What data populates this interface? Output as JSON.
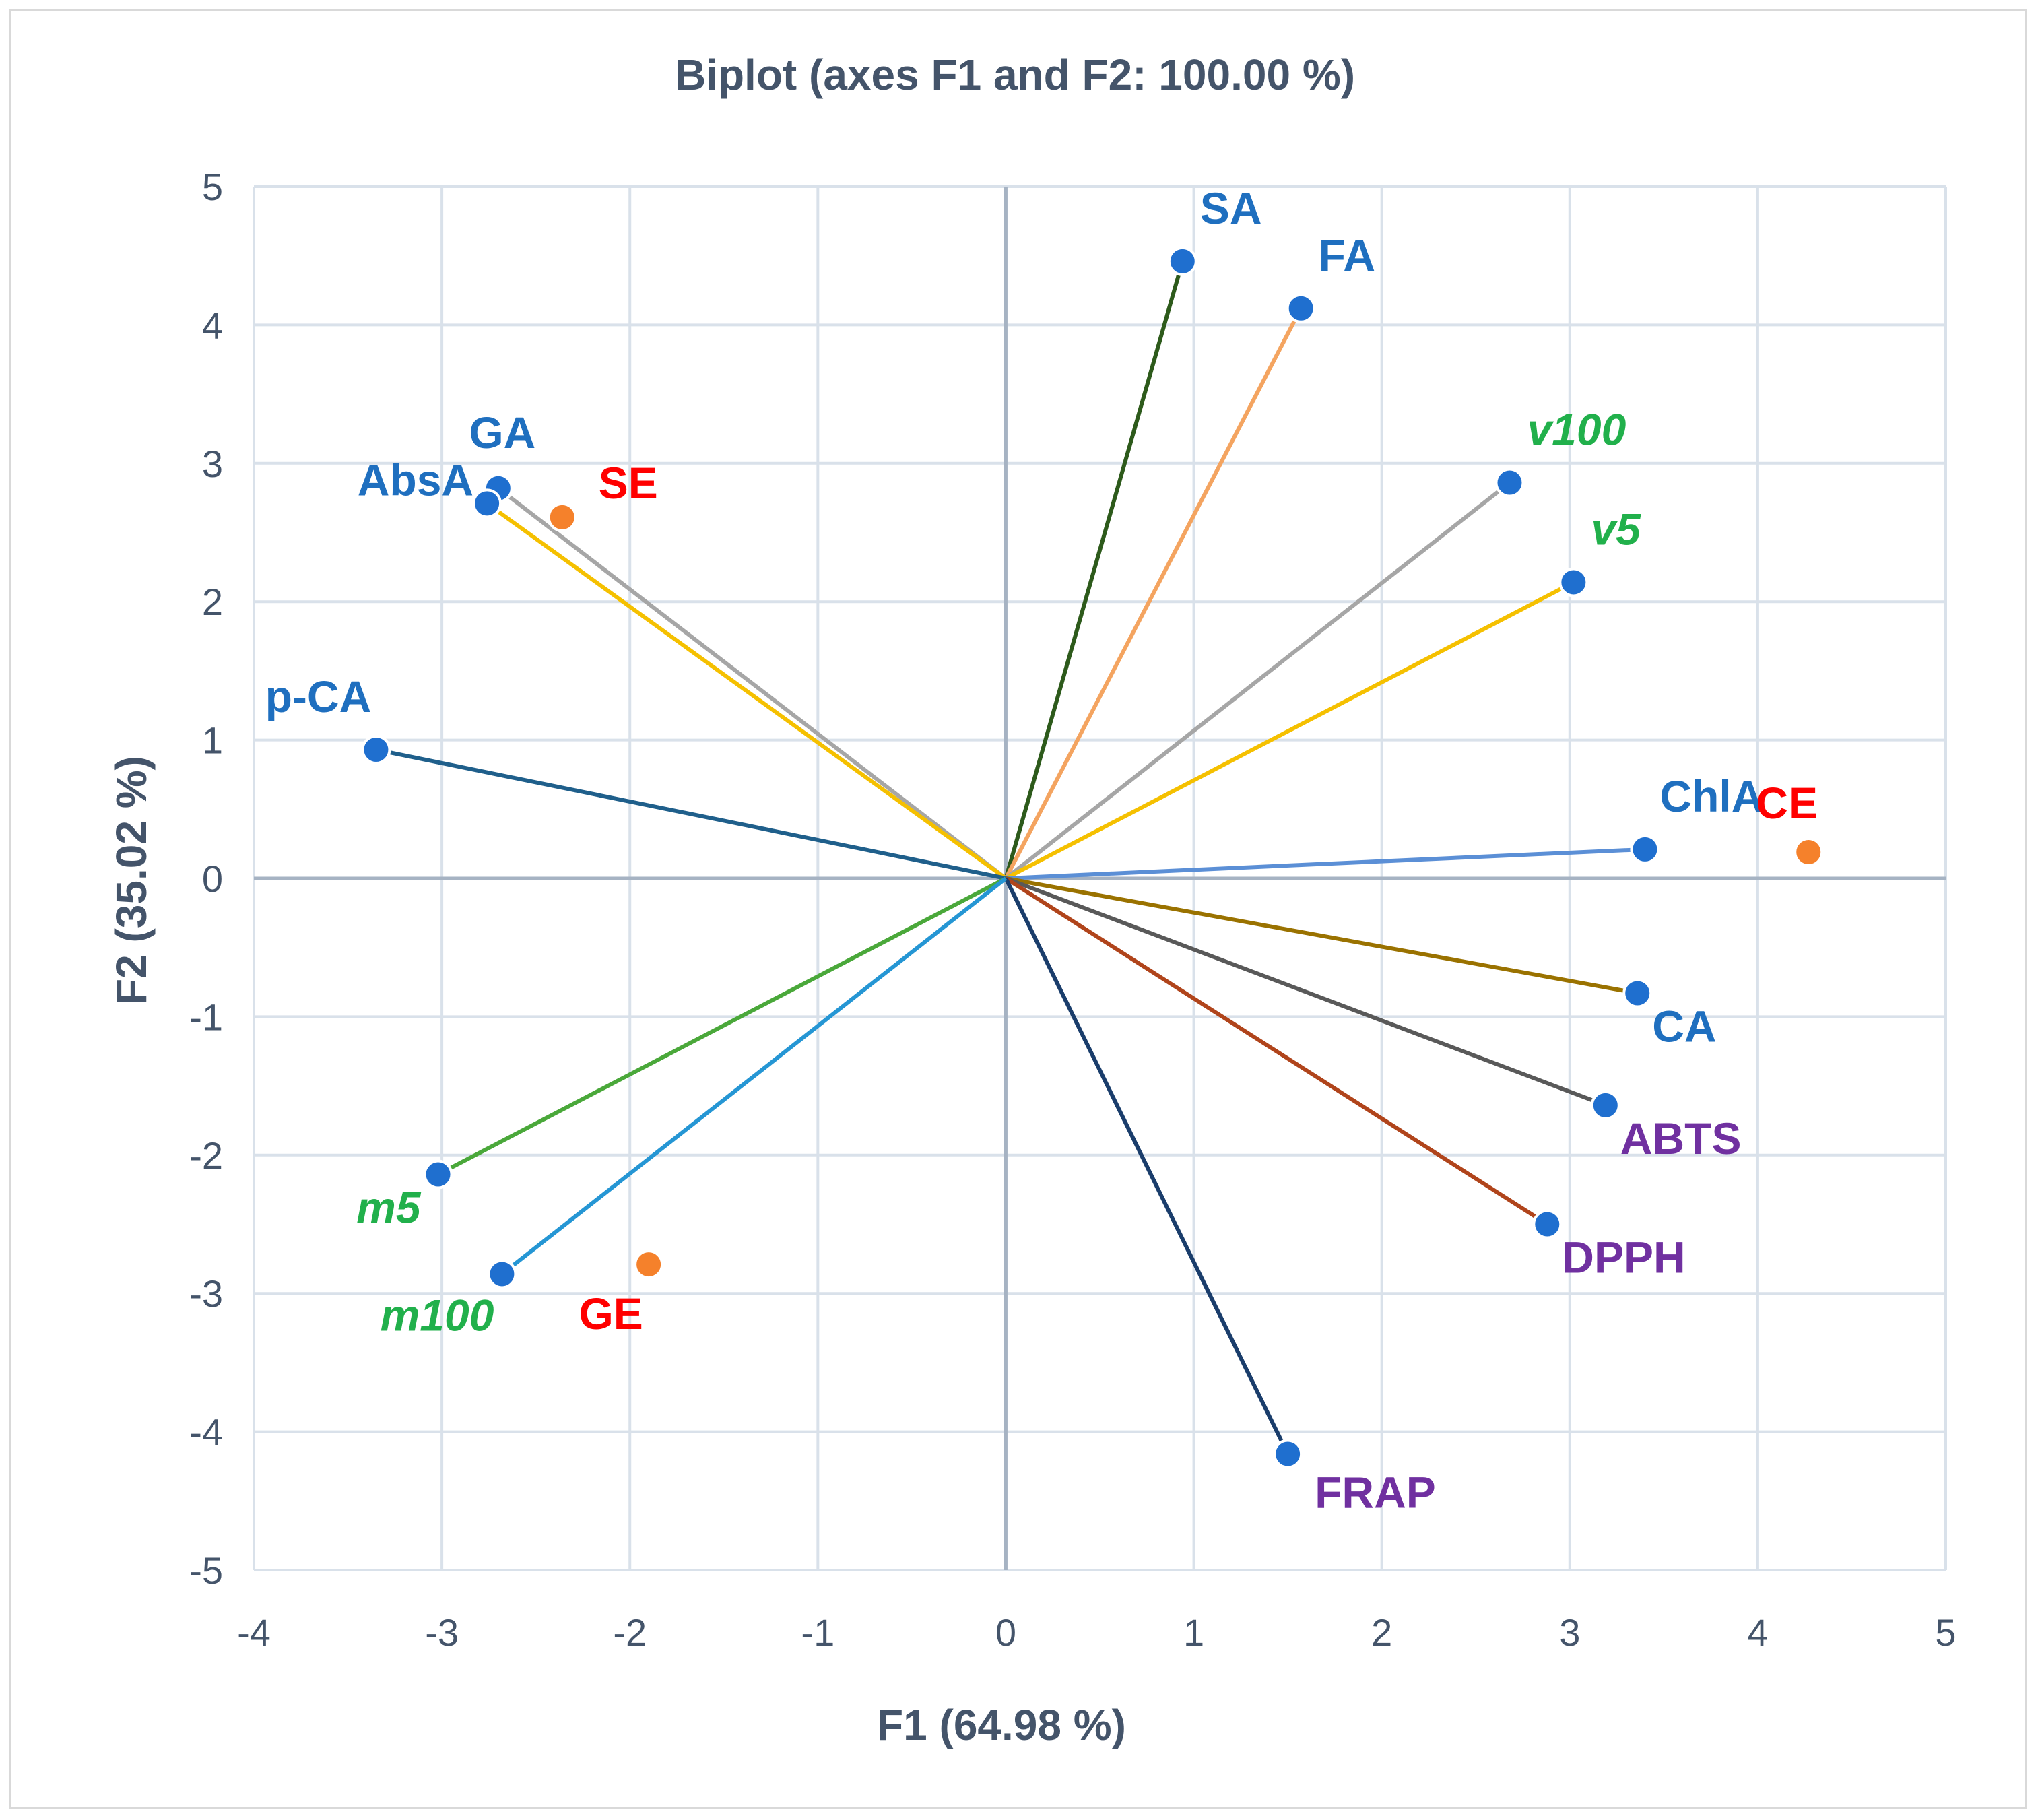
{
  "chart_data": {
    "type": "scatter",
    "subtype": "pca-biplot",
    "title": "Biplot (axes F1 and F2: 100.00 %)",
    "xlabel": "F1 (64.98 %)",
    "ylabel": "F2 (35.02 %)",
    "xlim": [
      -4,
      5
    ],
    "ylim": [
      -5,
      5
    ],
    "xticks": [
      -4,
      -3,
      -2,
      -1,
      0,
      1,
      2,
      3,
      4,
      5
    ],
    "yticks": [
      -5,
      -4,
      -3,
      -2,
      -1,
      0,
      1,
      2,
      3,
      4,
      5
    ],
    "grid": true,
    "colors": {
      "variable_point": "#1f6fcf",
      "observation_point": "#f5812b",
      "blue_label": "#1f6fbf",
      "red_label": "#ff0000",
      "green_label": "#21b04b",
      "purple_label": "#7030a0",
      "grid": "#d9e1ea",
      "zero_axis": "#a6b3c3"
    },
    "variables": [
      {
        "label": "SA",
        "x": 0.94,
        "y": 4.46,
        "line_color": "#2d5a1b",
        "label_color": "#1f6fbf",
        "italic": false
      },
      {
        "label": "FA",
        "x": 1.57,
        "y": 4.12,
        "line_color": "#f4a460",
        "label_color": "#1f6fbf",
        "italic": false
      },
      {
        "label": "v100",
        "x": 2.68,
        "y": 2.86,
        "line_color": "#a6a6a6",
        "label_color": "#21b04b",
        "italic": true
      },
      {
        "label": "v5",
        "x": 3.02,
        "y": 2.14,
        "line_color": "#f5c000",
        "label_color": "#21b04b",
        "italic": true
      },
      {
        "label": "GA",
        "x": -2.7,
        "y": 2.82,
        "line_color": "#a6a6a6",
        "label_color": "#1f6fbf",
        "italic": false
      },
      {
        "label": "AbsA",
        "x": -2.76,
        "y": 2.71,
        "line_color": "#f5c000",
        "label_color": "#1f6fbf",
        "italic": false
      },
      {
        "label": "p-CA",
        "x": -3.35,
        "y": 0.93,
        "line_color": "#1f5f8b",
        "label_color": "#1f6fbf",
        "italic": false
      },
      {
        "label": "ChlA",
        "x": 3.4,
        "y": 0.21,
        "line_color": "#5b8fd6",
        "label_color": "#1f6fbf",
        "italic": false
      },
      {
        "label": "CA",
        "x": 3.36,
        "y": -0.83,
        "line_color": "#9a7200",
        "label_color": "#1f6fbf",
        "italic": false
      },
      {
        "label": "ABTS",
        "x": 3.19,
        "y": -1.64,
        "line_color": "#595959",
        "label_color": "#7030a0",
        "italic": false
      },
      {
        "label": "DPPH",
        "x": 2.88,
        "y": -2.5,
        "line_color": "#b0441b",
        "label_color": "#7030a0",
        "italic": false
      },
      {
        "label": "FRAP",
        "x": 1.5,
        "y": -4.16,
        "line_color": "#1a3d6b",
        "label_color": "#7030a0",
        "italic": false
      },
      {
        "label": "m5",
        "x": -3.02,
        "y": -2.14,
        "line_color": "#4aa83a",
        "label_color": "#21b04b",
        "italic": true
      },
      {
        "label": "m100",
        "x": -2.68,
        "y": -2.86,
        "line_color": "#2596d4",
        "label_color": "#21b04b",
        "italic": true
      }
    ],
    "observations": [
      {
        "label": "SE",
        "x": -2.36,
        "y": 2.61
      },
      {
        "label": "CE",
        "x": 4.27,
        "y": 0.19
      },
      {
        "label": "GE",
        "x": -1.9,
        "y": -2.79
      }
    ]
  }
}
